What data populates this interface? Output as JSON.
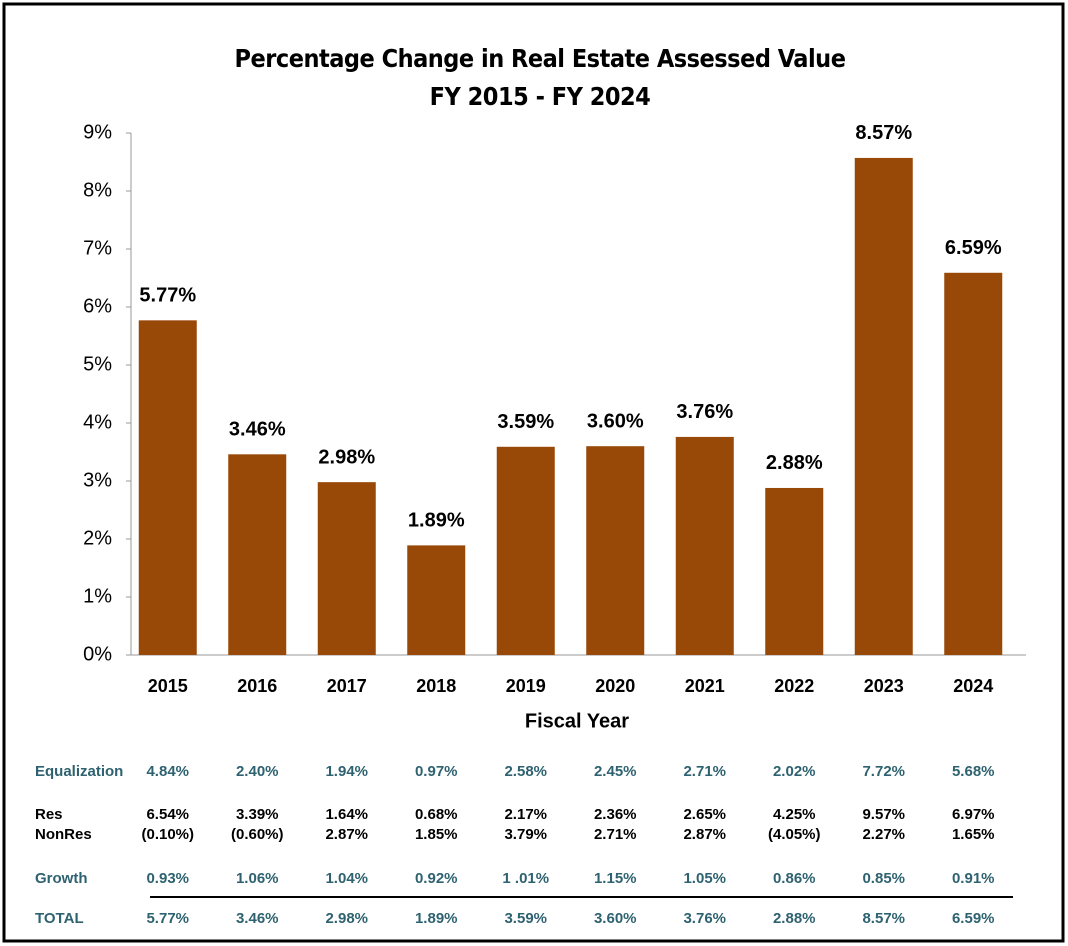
{
  "chart_data": {
    "type": "bar",
    "title": "Percentage Change in Real Estate Assessed Value",
    "subtitle": "FY 2015 - FY 2024",
    "x_label": "Fiscal Year",
    "categories": [
      "2015",
      "2016",
      "2017",
      "2018",
      "2019",
      "2020",
      "2021",
      "2022",
      "2023",
      "2024"
    ],
    "values": [
      5.77,
      3.46,
      2.98,
      1.89,
      3.59,
      3.6,
      3.76,
      2.88,
      8.57,
      6.59
    ],
    "value_labels": [
      "5.77%",
      "3.46%",
      "2.98%",
      "1.89%",
      "3.59%",
      "3.60%",
      "3.76%",
      "2.88%",
      "8.57%",
      "6.59%"
    ],
    "color": "#984807",
    "ylim": [
      0,
      9
    ],
    "yticks": [
      {
        "value": 0,
        "label": "0%"
      },
      {
        "value": 1,
        "label": "1%"
      },
      {
        "value": 2,
        "label": "2%"
      },
      {
        "value": 3,
        "label": "3%"
      },
      {
        "value": 4,
        "label": "4%"
      },
      {
        "value": 5,
        "label": "5%"
      },
      {
        "value": 6,
        "label": "6%"
      },
      {
        "value": 7,
        "label": "7%"
      },
      {
        "value": 8,
        "label": "8%"
      },
      {
        "value": 9,
        "label": "9%"
      }
    ],
    "grid": false
  },
  "table": {
    "rows": [
      {
        "label": "Equalization",
        "values": [
          "4.84%",
          "2.40%",
          "1.94%",
          "0.97%",
          "2.58%",
          "2.45%",
          "2.71%",
          "2.02%",
          "7.72%",
          "5.68%"
        ]
      },
      {
        "label": "Res",
        "values": [
          "6.54%",
          "3.39%",
          "1.64%",
          "0.68%",
          "2.17%",
          "2.36%",
          "2.65%",
          "4.25%",
          "9.57%",
          "6.97%"
        ]
      },
      {
        "label": "NonRes",
        "values": [
          "(0.10%)",
          "(0.60%)",
          "2.87%",
          "1.85%",
          "3.79%",
          "2.71%",
          "2.87%",
          "(4.05%)",
          "2.27%",
          "1.65%"
        ]
      },
      {
        "label": "Growth",
        "values": [
          "0.93%",
          "1.06%",
          "1.04%",
          "0.92%",
          "1 .01%",
          "1.15%",
          "1.05%",
          "0.86%",
          "0.85%",
          "0.91%"
        ]
      },
      {
        "label": "TOTAL",
        "values": [
          "5.77%",
          "3.46%",
          "2.98%",
          "1.89%",
          "3.59%",
          "3.60%",
          "3.76%",
          "2.88%",
          "8.57%",
          "6.59%"
        ]
      }
    ]
  }
}
